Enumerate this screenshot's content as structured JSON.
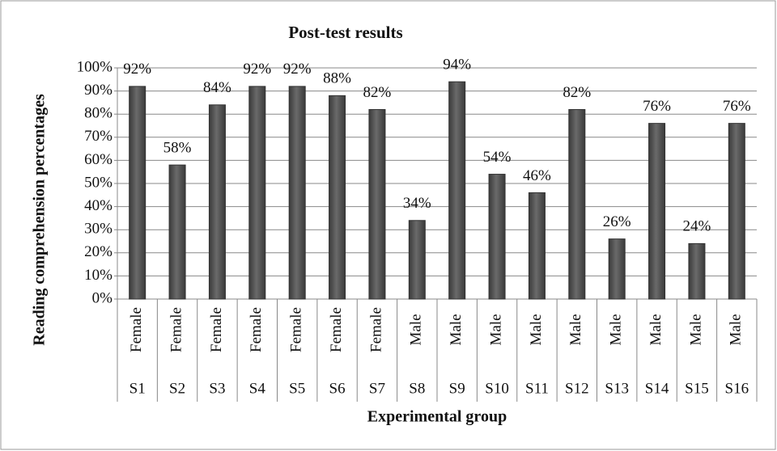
{
  "chart_data": {
    "type": "bar",
    "title": "Post-test results",
    "x_label": "Experimental group",
    "y_label": "Reading comprehension percentages",
    "categories": [
      "S1",
      "S2",
      "S3",
      "S4",
      "S5",
      "S6",
      "S7",
      "S8",
      "S9",
      "S10",
      "S11",
      "S12",
      "S13",
      "S14",
      "S15",
      "S16"
    ],
    "category_groups": [
      "Female",
      "Female",
      "Female",
      "Female",
      "Female",
      "Female",
      "Female",
      "Male",
      "Male",
      "Male",
      "Male",
      "Male",
      "Male",
      "Male",
      "Male",
      "Male"
    ],
    "values": [
      92,
      58,
      84,
      92,
      92,
      88,
      82,
      34,
      94,
      54,
      46,
      82,
      26,
      76,
      24,
      76
    ],
    "value_labels": [
      "92%",
      "58%",
      "84%",
      "92%",
      "92%",
      "88%",
      "82%",
      "34%",
      "94%",
      "54%",
      "46%",
      "82%",
      "26%",
      "76%",
      "24%",
      "76%"
    ],
    "color": "#555555",
    "ylim": [
      0,
      100
    ],
    "yticks": [
      {
        "value": 0,
        "label": "0%"
      },
      {
        "value": 10,
        "label": "10%"
      },
      {
        "value": 20,
        "label": "20%"
      },
      {
        "value": 30,
        "label": "30%"
      },
      {
        "value": 40,
        "label": "40%"
      },
      {
        "value": 50,
        "label": "50%"
      },
      {
        "value": 60,
        "label": "60%"
      },
      {
        "value": 70,
        "label": "70%"
      },
      {
        "value": 80,
        "label": "80%"
      },
      {
        "value": 90,
        "label": "90%"
      },
      {
        "value": 100,
        "label": "100%"
      }
    ],
    "grid": true
  }
}
